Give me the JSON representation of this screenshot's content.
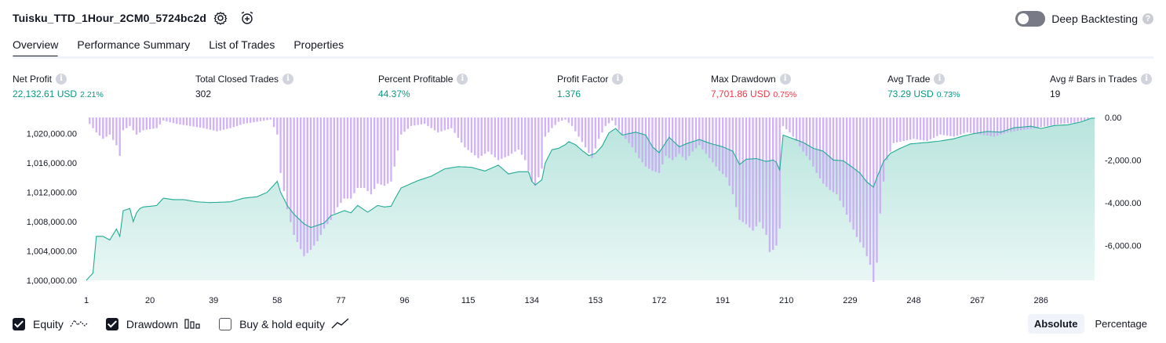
{
  "header": {
    "title": "Tuisku_TTD_1Hour_2CM0_5724bc2d",
    "settings_icon": "gear-icon",
    "alert_icon": "alarm-add-icon",
    "deep_backtesting_label": "Deep Backtesting",
    "deep_backtesting_enabled": false,
    "help_icon": "question-icon"
  },
  "tabs": [
    {
      "label": "Overview",
      "active": true
    },
    {
      "label": "Performance Summary",
      "active": false
    },
    {
      "label": "List of Trades",
      "active": false
    },
    {
      "label": "Properties",
      "active": false
    }
  ],
  "metrics": [
    {
      "label": "Net Profit",
      "value": "22,132.61 USD",
      "pct": "2.21%",
      "color": "#089981"
    },
    {
      "label": "Total Closed Trades",
      "value": "302",
      "pct": "",
      "color": "#131722"
    },
    {
      "label": "Percent Profitable",
      "value": "44.37%",
      "pct": "",
      "color": "#089981"
    },
    {
      "label": "Profit Factor",
      "value": "1.376",
      "pct": "",
      "color": "#089981"
    },
    {
      "label": "Max Drawdown",
      "value": "7,701.86 USD",
      "pct": "0.75%",
      "color": "#f23645"
    },
    {
      "label": "Avg Trade",
      "value": "73.29 USD",
      "pct": "0.73%",
      "color": "#089981"
    },
    {
      "label": "Avg # Bars in Trades",
      "value": "19",
      "pct": "",
      "color": "#131722"
    }
  ],
  "chart_data": {
    "type": "line",
    "series_equity_name": "Equity",
    "series_drawdown_name": "Drawdown",
    "x_ticks": [
      "1",
      "20",
      "39",
      "58",
      "77",
      "96",
      "115",
      "134",
      "153",
      "172",
      "191",
      "210",
      "229",
      "248",
      "267",
      "286"
    ],
    "left_ticks": [
      "1,020,000.00",
      "1,016,000.00",
      "1,012,000.00",
      "1,008,000.00",
      "1,004,000.00",
      "1,000,000.00"
    ],
    "right_ticks": [
      "0.00",
      "-2,000.00",
      "-4,000.00",
      "-6,000.00"
    ],
    "equity_ylim": [
      1000000,
      1022200
    ],
    "drawdown_ylim": [
      -7701.86,
      0
    ],
    "equity_color": "#22ab94",
    "drawdown_color": "#c9a5f5",
    "equity_keypoints": [
      [
        1,
        1000000
      ],
      [
        3,
        1001000
      ],
      [
        4,
        1006000
      ],
      [
        6,
        1006000
      ],
      [
        8,
        1005500
      ],
      [
        10,
        1007000
      ],
      [
        11,
        1006000
      ],
      [
        12,
        1009500
      ],
      [
        14,
        1009800
      ],
      [
        15,
        1008000
      ],
      [
        16,
        1009200
      ],
      [
        17,
        1009800
      ],
      [
        18,
        1010000
      ],
      [
        22,
        1010200
      ],
      [
        24,
        1011200
      ],
      [
        27,
        1011000
      ],
      [
        30,
        1011000
      ],
      [
        34,
        1010700
      ],
      [
        38,
        1010600
      ],
      [
        44,
        1010700
      ],
      [
        48,
        1011200
      ],
      [
        52,
        1011400
      ],
      [
        55,
        1012000
      ],
      [
        58,
        1013500
      ],
      [
        59,
        1012000
      ],
      [
        61,
        1010200
      ],
      [
        63,
        1009000
      ],
      [
        66,
        1007700
      ],
      [
        68,
        1007200
      ],
      [
        72,
        1007800
      ],
      [
        74,
        1008800
      ],
      [
        78,
        1009500
      ],
      [
        80,
        1009200
      ],
      [
        82,
        1010200
      ],
      [
        85,
        1009300
      ],
      [
        88,
        1010200
      ],
      [
        90,
        1010000
      ],
      [
        92,
        1010100
      ],
      [
        93,
        1011000
      ],
      [
        95,
        1012600
      ],
      [
        100,
        1013600
      ],
      [
        104,
        1014200
      ],
      [
        108,
        1015200
      ],
      [
        112,
        1015500
      ],
      [
        116,
        1015400
      ],
      [
        120,
        1014900
      ],
      [
        124,
        1015700
      ],
      [
        127,
        1014500
      ],
      [
        130,
        1014800
      ],
      [
        133,
        1014800
      ],
      [
        134,
        1013500
      ],
      [
        135,
        1013000
      ],
      [
        137,
        1013700
      ],
      [
        138,
        1016000
      ],
      [
        140,
        1017800
      ],
      [
        142,
        1018000
      ],
      [
        144,
        1018500
      ],
      [
        145,
        1018900
      ],
      [
        147,
        1018500
      ],
      [
        149,
        1017700
      ],
      [
        151,
        1017000
      ],
      [
        153,
        1017300
      ],
      [
        155,
        1018300
      ],
      [
        157,
        1020100
      ],
      [
        159,
        1020700
      ],
      [
        161,
        1019800
      ],
      [
        165,
        1020200
      ],
      [
        168,
        1019800
      ],
      [
        170,
        1018200
      ],
      [
        172,
        1017400
      ],
      [
        175,
        1019500
      ],
      [
        178,
        1018200
      ],
      [
        180,
        1018600
      ],
      [
        184,
        1019200
      ],
      [
        187,
        1018700
      ],
      [
        191,
        1018200
      ],
      [
        194,
        1017600
      ],
      [
        196,
        1015800
      ],
      [
        198,
        1016500
      ],
      [
        201,
        1016600
      ],
      [
        204,
        1016200
      ],
      [
        206,
        1016400
      ],
      [
        207,
        1016100
      ],
      [
        208,
        1015000
      ],
      [
        209,
        1019800
      ],
      [
        212,
        1019300
      ],
      [
        215,
        1018800
      ],
      [
        218,
        1018000
      ],
      [
        221,
        1017600
      ],
      [
        224,
        1016400
      ],
      [
        227,
        1016300
      ],
      [
        230,
        1015300
      ],
      [
        232,
        1014600
      ],
      [
        234,
        1013400
      ],
      [
        236,
        1012700
      ],
      [
        237,
        1014000
      ],
      [
        239,
        1016200
      ],
      [
        241,
        1017300
      ],
      [
        244,
        1018000
      ],
      [
        247,
        1018600
      ],
      [
        252,
        1018800
      ],
      [
        256,
        1019000
      ],
      [
        260,
        1019300
      ],
      [
        263,
        1019700
      ],
      [
        266,
        1020000
      ],
      [
        270,
        1020300
      ],
      [
        274,
        1020200
      ],
      [
        278,
        1020800
      ],
      [
        283,
        1021000
      ],
      [
        286,
        1020700
      ],
      [
        290,
        1021100
      ],
      [
        294,
        1021200
      ],
      [
        298,
        1021600
      ],
      [
        301,
        1022100
      ]
    ],
    "drawdown_keypoints": [
      [
        1,
        0
      ],
      [
        2,
        -300
      ],
      [
        4,
        -700
      ],
      [
        6,
        -1000
      ],
      [
        8,
        -800
      ],
      [
        10,
        -1300
      ],
      [
        11,
        -1800
      ],
      [
        12,
        -600
      ],
      [
        14,
        -400
      ],
      [
        16,
        -800
      ],
      [
        18,
        -600
      ],
      [
        22,
        -500
      ],
      [
        24,
        -150
      ],
      [
        28,
        -300
      ],
      [
        32,
        -400
      ],
      [
        36,
        -500
      ],
      [
        40,
        -650
      ],
      [
        44,
        -500
      ],
      [
        48,
        -300
      ],
      [
        52,
        -200
      ],
      [
        56,
        -100
      ],
      [
        58,
        -800
      ],
      [
        59,
        -2600
      ],
      [
        61,
        -4300
      ],
      [
        63,
        -5500
      ],
      [
        66,
        -6500
      ],
      [
        68,
        -6200
      ],
      [
        70,
        -5800
      ],
      [
        72,
        -5200
      ],
      [
        74,
        -4800
      ],
      [
        76,
        -4200
      ],
      [
        78,
        -3800
      ],
      [
        80,
        -3800
      ],
      [
        82,
        -3300
      ],
      [
        84,
        -3300
      ],
      [
        86,
        -3600
      ],
      [
        88,
        -3100
      ],
      [
        90,
        -3200
      ],
      [
        92,
        -3000
      ],
      [
        93,
        -2300
      ],
      [
        95,
        -800
      ],
      [
        98,
        -400
      ],
      [
        102,
        -300
      ],
      [
        106,
        -700
      ],
      [
        110,
        -500
      ],
      [
        114,
        -1400
      ],
      [
        118,
        -1900
      ],
      [
        121,
        -1600
      ],
      [
        124,
        -2000
      ],
      [
        127,
        -1800
      ],
      [
        130,
        -1500
      ],
      [
        132,
        -2000
      ],
      [
        134,
        -3000
      ],
      [
        135,
        -3200
      ],
      [
        137,
        -2400
      ],
      [
        138,
        -900
      ],
      [
        140,
        -500
      ],
      [
        142,
        -200
      ],
      [
        144,
        -100
      ],
      [
        146,
        -400
      ],
      [
        148,
        -900
      ],
      [
        150,
        -1400
      ],
      [
        152,
        -1900
      ],
      [
        154,
        -1000
      ],
      [
        156,
        -400
      ],
      [
        158,
        -150
      ],
      [
        160,
        -600
      ],
      [
        162,
        -1000
      ],
      [
        164,
        -1400
      ],
      [
        166,
        -1900
      ],
      [
        168,
        -2300
      ],
      [
        170,
        -2500
      ],
      [
        172,
        -2600
      ],
      [
        174,
        -1800
      ],
      [
        176,
        -2000
      ],
      [
        178,
        -1700
      ],
      [
        180,
        -2000
      ],
      [
        182,
        -1600
      ],
      [
        184,
        -1300
      ],
      [
        186,
        -1700
      ],
      [
        188,
        -2100
      ],
      [
        190,
        -2500
      ],
      [
        192,
        -2800
      ],
      [
        194,
        -3600
      ],
      [
        196,
        -4800
      ],
      [
        198,
        -5000
      ],
      [
        200,
        -5300
      ],
      [
        202,
        -4900
      ],
      [
        204,
        -5500
      ],
      [
        205,
        -6300
      ],
      [
        206,
        -6200
      ],
      [
        207,
        -6000
      ],
      [
        208,
        -5200
      ],
      [
        209,
        -400
      ],
      [
        211,
        -700
      ],
      [
        213,
        -1100
      ],
      [
        215,
        -1600
      ],
      [
        217,
        -2000
      ],
      [
        219,
        -2600
      ],
      [
        221,
        -3100
      ],
      [
        223,
        -3400
      ],
      [
        225,
        -3600
      ],
      [
        227,
        -4200
      ],
      [
        229,
        -4900
      ],
      [
        231,
        -5600
      ],
      [
        233,
        -6100
      ],
      [
        235,
        -6900
      ],
      [
        236,
        -7701.86
      ],
      [
        237,
        -6800
      ],
      [
        238,
        -4500
      ],
      [
        239,
        -3000
      ],
      [
        240,
        -2000
      ],
      [
        242,
        -1200
      ],
      [
        245,
        -1100
      ],
      [
        248,
        -1000
      ],
      [
        252,
        -1100
      ],
      [
        256,
        -800
      ],
      [
        260,
        -900
      ],
      [
        264,
        -700
      ],
      [
        268,
        -800
      ],
      [
        272,
        -900
      ],
      [
        276,
        -700
      ],
      [
        280,
        -600
      ],
      [
        284,
        -500
      ],
      [
        288,
        -400
      ],
      [
        292,
        -300
      ],
      [
        296,
        -250
      ],
      [
        300,
        -100
      ],
      [
        301,
        0
      ]
    ]
  },
  "legend": [
    {
      "label": "Equity",
      "checked": true,
      "icon": "equity-line-icon"
    },
    {
      "label": "Drawdown",
      "checked": true,
      "icon": "drawdown-bars-icon"
    },
    {
      "label": "Buy & hold equity",
      "checked": false,
      "icon": "buy-hold-line-icon"
    }
  ],
  "view_modes": [
    {
      "label": "Absolute",
      "active": true
    },
    {
      "label": "Percentage",
      "active": false
    }
  ]
}
